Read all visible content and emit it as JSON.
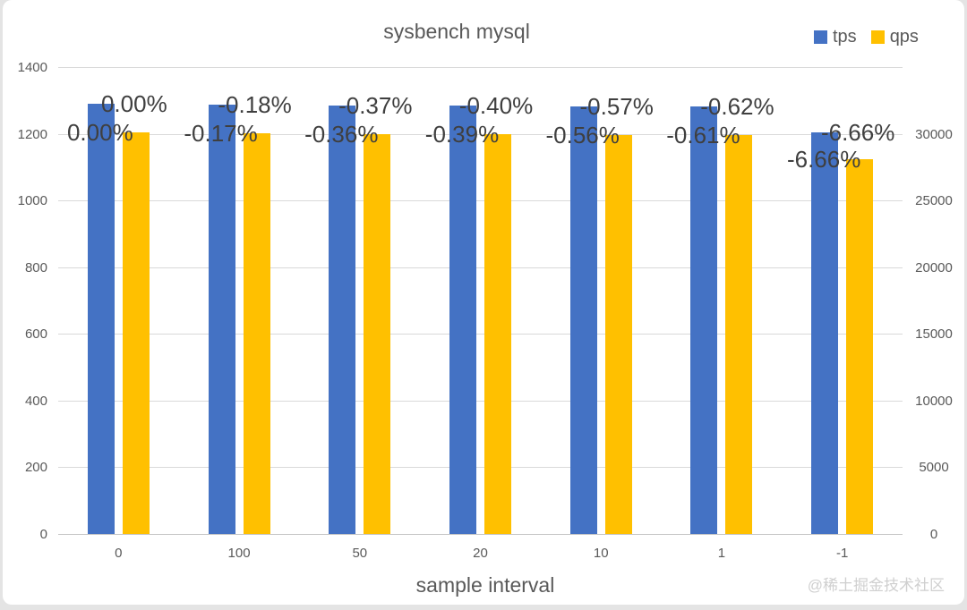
{
  "chart_data": {
    "type": "bar",
    "title": "sysbench mysql",
    "xlabel": "sample interval",
    "categories": [
      "0",
      "100",
      "50",
      "20",
      "10",
      "1",
      "-1"
    ],
    "series": [
      {
        "name": "tps",
        "axis": "left",
        "color": "#4472C4",
        "values": [
          1290,
          1288,
          1285,
          1285,
          1283,
          1282,
          1204
        ],
        "labels": [
          "0.00%",
          "-0.18%",
          "-0.37%",
          "-0.40%",
          "-0.57%",
          "-0.62%",
          "-6.66%"
        ]
      },
      {
        "name": "qps",
        "axis": "right",
        "color": "#FFC000",
        "values": [
          25800,
          25756,
          25707,
          25699,
          25656,
          25643,
          24082
        ],
        "labels": [
          "0.00%",
          "-0.17%",
          "-0.36%",
          "-0.39%",
          "-0.56%",
          "-0.61%",
          "-6.66%"
        ]
      }
    ],
    "left_axis": {
      "min": 0,
      "max": 1400,
      "step": 200,
      "ticks": [
        "0",
        "200",
        "400",
        "600",
        "800",
        "1000",
        "1200",
        "1400"
      ]
    },
    "right_axis": {
      "min": 0,
      "max": 30000,
      "step": 5000,
      "ticks": [
        "0",
        "5000",
        "10000",
        "15000",
        "20000",
        "25000",
        "30000"
      ]
    },
    "grid": true,
    "legend_position": "top-right"
  },
  "watermark": "@稀土掘金技术社区",
  "colors": {
    "tps_bar": "#4472C4",
    "qps_bar": "#FFC000",
    "gridline": "#d9d9d9",
    "axis_text": "#595959",
    "data_label_text": "#3f3f3f",
    "watermark_text": "#cfcfcf",
    "card_background": "#ffffff"
  }
}
